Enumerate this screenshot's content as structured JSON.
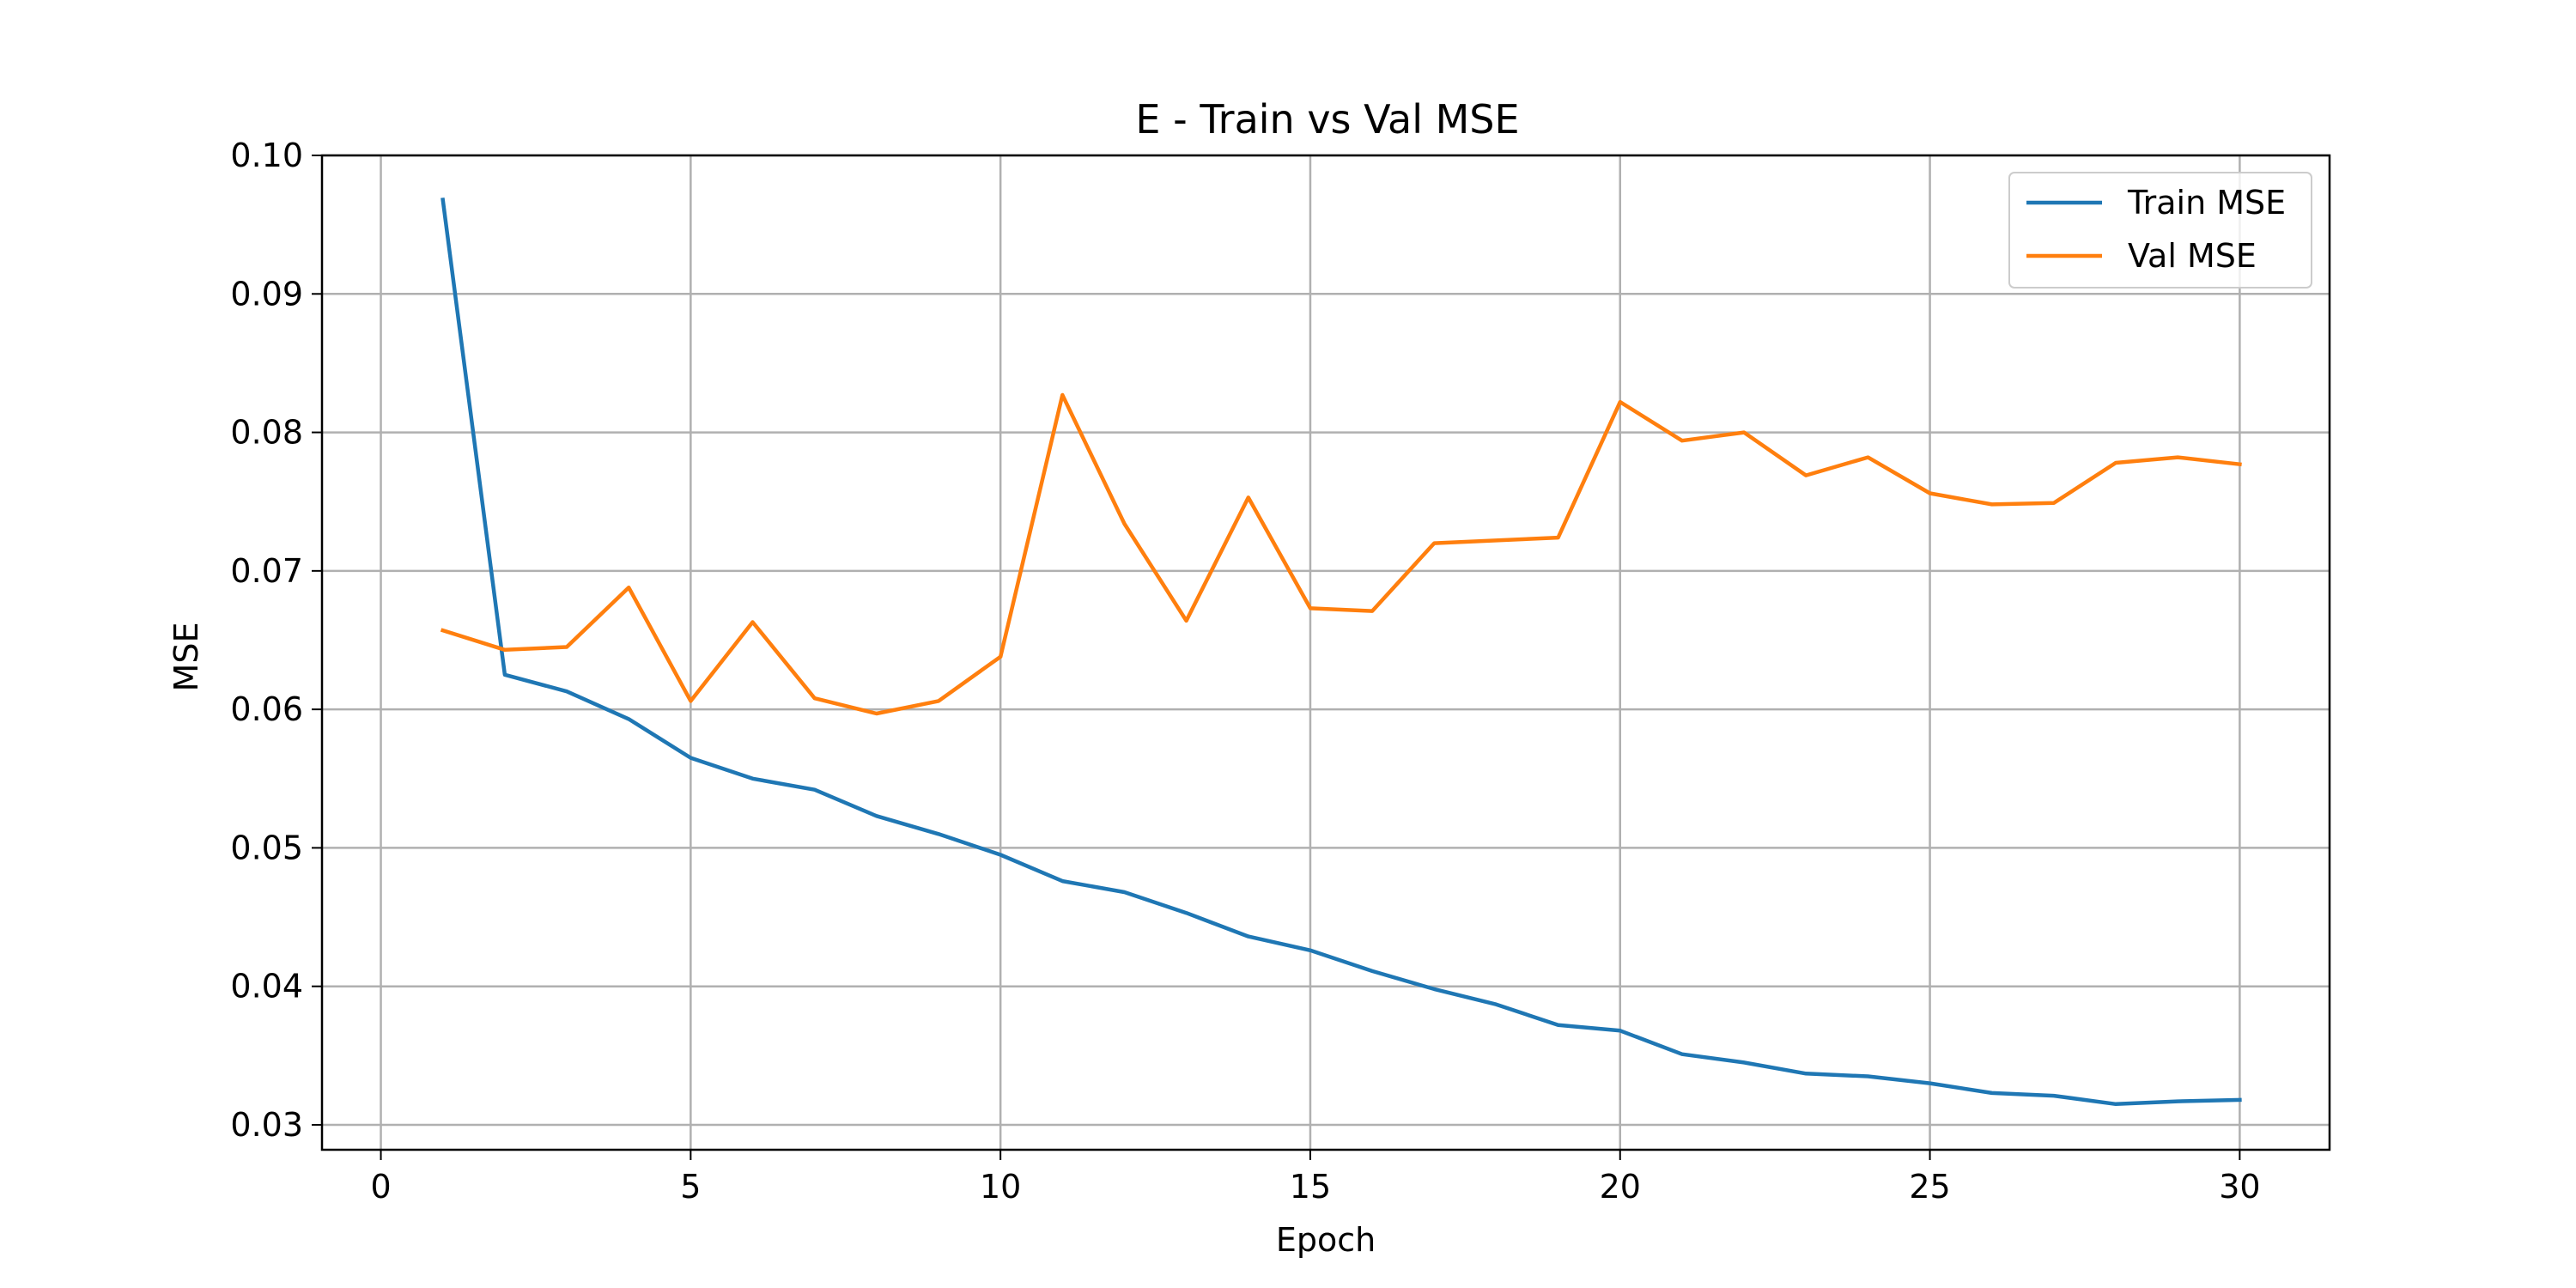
{
  "chart_data": {
    "type": "line",
    "title": "E - Train vs Val MSE",
    "xlabel": "Epoch",
    "ylabel": "MSE",
    "xlim": [
      -0.95,
      31.45
    ],
    "ylim": [
      0.0282,
      0.1
    ],
    "xticks": [
      0,
      5,
      10,
      15,
      20,
      25,
      30
    ],
    "xtick_labels": [
      "0",
      "5",
      "10",
      "15",
      "20",
      "25",
      "30"
    ],
    "yticks": [
      0.03,
      0.04,
      0.05,
      0.06,
      0.07,
      0.08,
      0.09,
      0.1
    ],
    "ytick_labels": [
      "0.03",
      "0.04",
      "0.05",
      "0.06",
      "0.07",
      "0.08",
      "0.09",
      "0.10"
    ],
    "grid": true,
    "legend_position": "top-right",
    "x": [
      1,
      2,
      3,
      4,
      5,
      6,
      7,
      8,
      9,
      10,
      11,
      12,
      13,
      14,
      15,
      16,
      17,
      18,
      19,
      20,
      21,
      22,
      23,
      24,
      25,
      26,
      27,
      28,
      29,
      30
    ],
    "series": [
      {
        "name": "Train MSE",
        "color": "#1f77b4",
        "values": [
          0.0968,
          0.0625,
          0.0613,
          0.0593,
          0.0565,
          0.055,
          0.0542,
          0.0523,
          0.051,
          0.0495,
          0.0476,
          0.0468,
          0.0453,
          0.0436,
          0.0426,
          0.0411,
          0.0398,
          0.0387,
          0.0372,
          0.0368,
          0.0351,
          0.0345,
          0.0337,
          0.0335,
          0.033,
          0.0323,
          0.0321,
          0.0315,
          0.0317,
          0.0318
        ]
      },
      {
        "name": "Val MSE",
        "color": "#ff7f0e",
        "values": [
          0.0657,
          0.0643,
          0.0645,
          0.0688,
          0.0606,
          0.0663,
          0.0608,
          0.0597,
          0.0606,
          0.0638,
          0.0827,
          0.0734,
          0.0664,
          0.0753,
          0.0673,
          0.0671,
          0.072,
          0.0722,
          0.0724,
          0.0822,
          0.0794,
          0.08,
          0.0769,
          0.0782,
          0.0756,
          0.0748,
          0.0749,
          0.0778,
          0.0782,
          0.0777
        ]
      }
    ]
  }
}
